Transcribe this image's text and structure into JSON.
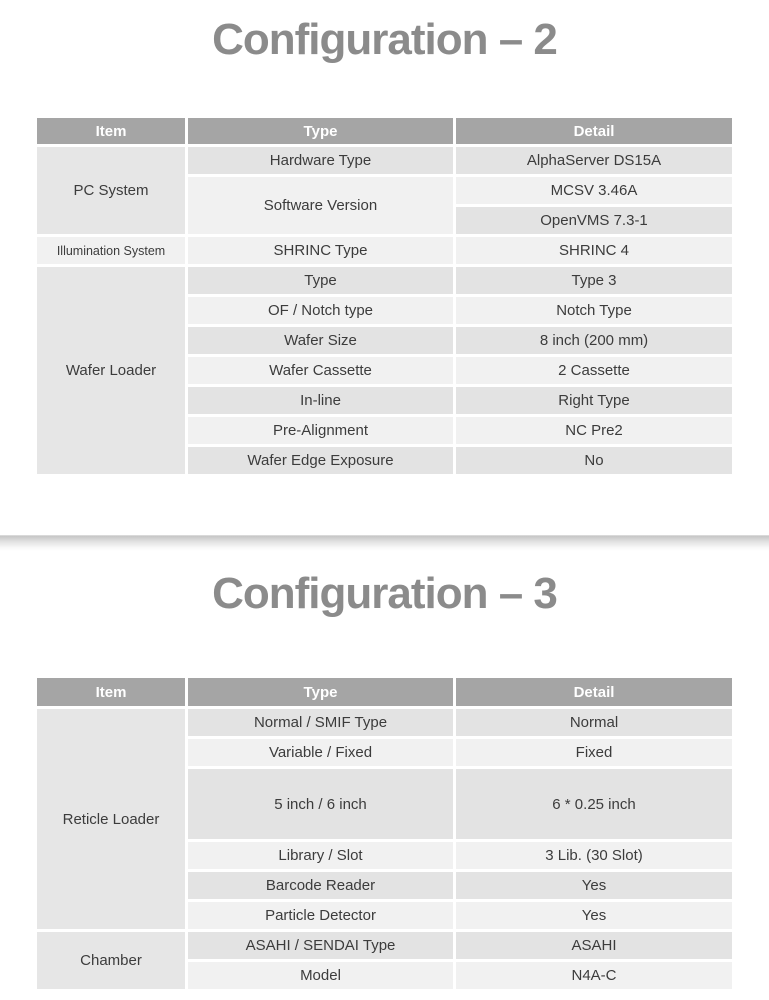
{
  "colors": {
    "header_bg": "#a5a5a5",
    "header_text": "#ffffff",
    "row_dark": "#e3e3e3",
    "row_light": "#f1f1f1",
    "item_cell": "#e6e6e6",
    "title_text": "#8b8b8b",
    "body_text": "#3c3c3c"
  },
  "slide1": {
    "title": "Configuration – 2",
    "table": {
      "headers": {
        "item": "Item",
        "type": "Type",
        "detail": "Detail"
      },
      "rows": [
        {
          "item": "PC System",
          "type": "Hardware Type",
          "detail": "AlphaServer DS15A"
        },
        {
          "type": "Software Version",
          "detail": "MCSV 3.46A"
        },
        {
          "detail": "OpenVMS 7.3-1"
        },
        {
          "item": "Illumination System",
          "type": "SHRINC Type",
          "detail": "SHRINC 4"
        },
        {
          "item": "Wafer Loader",
          "type": "Type",
          "detail": "Type 3"
        },
        {
          "type": "OF / Notch type",
          "detail": "Notch Type"
        },
        {
          "type": "Wafer Size",
          "detail": "8 inch (200 mm)"
        },
        {
          "type": "Wafer Cassette",
          "detail": "2 Cassette"
        },
        {
          "type": "In-line",
          "detail": "Right Type"
        },
        {
          "type": "Pre-Alignment",
          "detail": "NC Pre2"
        },
        {
          "type": "Wafer Edge Exposure",
          "detail": "No"
        }
      ]
    }
  },
  "slide2": {
    "title": "Configuration – 3",
    "table": {
      "headers": {
        "item": "Item",
        "type": "Type",
        "detail": "Detail"
      },
      "rows": [
        {
          "item": "Reticle Loader",
          "type": "Normal / SMIF Type",
          "detail": "Normal"
        },
        {
          "type": "Variable / Fixed",
          "detail": "Fixed"
        },
        {
          "type": "5 inch / 6 inch",
          "detail": "6 * 0.25 inch"
        },
        {
          "type": "Library / Slot",
          "detail": "3 Lib. (30 Slot)"
        },
        {
          "type": "Barcode Reader",
          "detail": "Yes"
        },
        {
          "type": "Particle Detector",
          "detail": "Yes"
        },
        {
          "item": "Chamber",
          "type": "ASAHI / SENDAI Type",
          "detail": "ASAHI"
        },
        {
          "type": "Model",
          "detail": "N4A-C"
        }
      ]
    }
  }
}
